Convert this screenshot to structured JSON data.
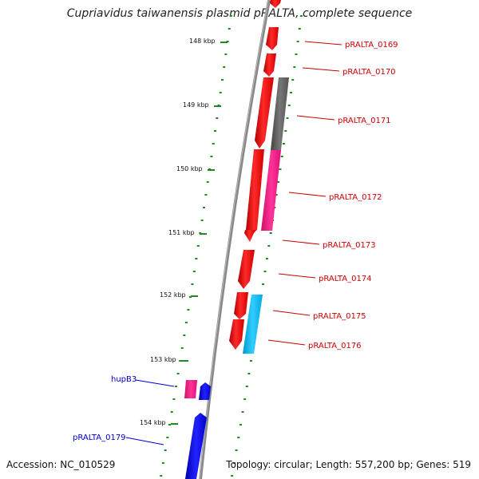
{
  "title": "Cupriavidus taiwanensis plasmid pRALTA, complete sequence",
  "accession": "Accession: NC_010529",
  "topology": "Topology: circular; Length: 557,200 bp; Genes: 519",
  "kbp_labels": [
    "148 kbp",
    "149 kbp",
    "150 kbp",
    "151 kbp",
    "152 kbp",
    "153 kbp",
    "154 kbp"
  ],
  "genes_right": [
    "pRALTA_0169",
    "pRALTA_0170",
    "pRALTA_0171",
    "pRALTA_0172",
    "pRALTA_0173",
    "pRALTA_0174",
    "pRALTA_0175",
    "pRALTA_0176"
  ],
  "genes_left": [
    "hupB3",
    "pRALTA_0179"
  ],
  "colors": {
    "forward_strand": "#ff0000",
    "grey_gene": "#666666",
    "pink_gene": "#ff2288",
    "cyan_gene": "#00bbee",
    "reverse_strand": "#0000ee",
    "ticks": "#228822",
    "label_right": "#cc0000",
    "label_left": "#0000cc"
  }
}
